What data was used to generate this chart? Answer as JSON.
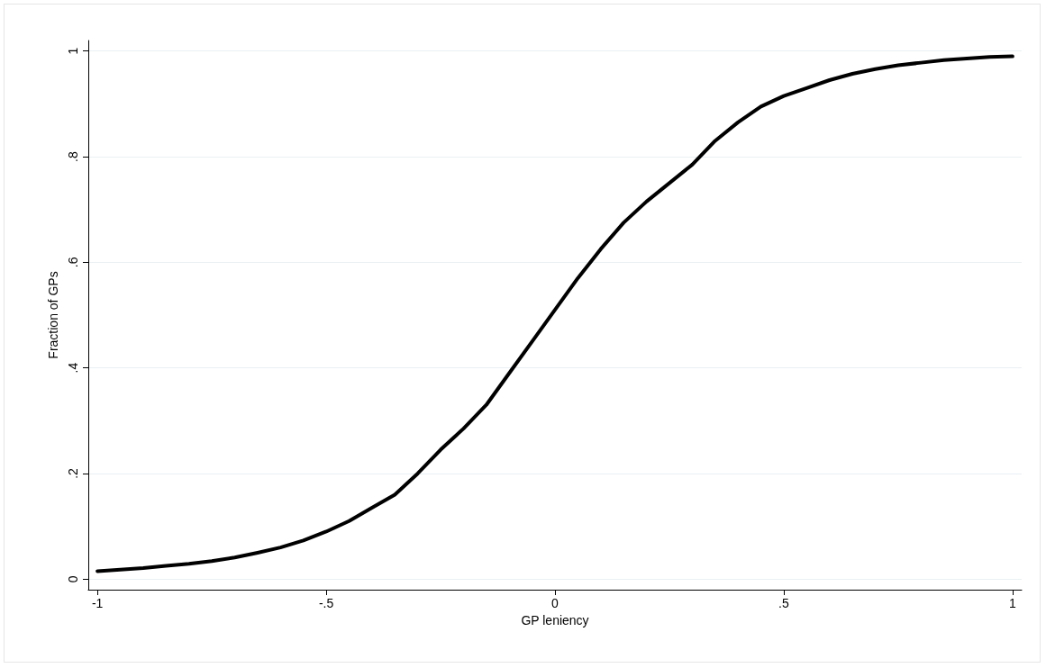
{
  "chart_data": {
    "type": "line",
    "xlabel": "GP leniency",
    "ylabel": "Fraction of GPs",
    "x": [
      -1,
      -0.95,
      -0.9,
      -0.85,
      -0.8,
      -0.75,
      -0.7,
      -0.65,
      -0.6,
      -0.55,
      -0.5,
      -0.45,
      -0.4,
      -0.35,
      -0.3,
      -0.25,
      -0.2,
      -0.15,
      -0.1,
      -0.05,
      0,
      0.05,
      0.1,
      0.15,
      0.2,
      0.25,
      0.3,
      0.35,
      0.4,
      0.45,
      0.5,
      0.55,
      0.6,
      0.65,
      0.7,
      0.75,
      0.8,
      0.85,
      0.9,
      0.95,
      1
    ],
    "series": [
      {
        "color": "#000000",
        "values": [
          0.015,
          0.018,
          0.021,
          0.025,
          0.029,
          0.034,
          0.041,
          0.05,
          0.06,
          0.073,
          0.09,
          0.11,
          0.135,
          0.16,
          0.2,
          0.245,
          0.285,
          0.33,
          0.39,
          0.45,
          0.51,
          0.57,
          0.625,
          0.675,
          0.715,
          0.75,
          0.785,
          0.83,
          0.865,
          0.895,
          0.915,
          0.93,
          0.945,
          0.957,
          0.966,
          0.973,
          0.978,
          0.983,
          0.986,
          0.989,
          0.99
        ]
      }
    ],
    "xlim": [
      -1.02,
      1.02
    ],
    "ylim": [
      -0.02,
      1.02
    ],
    "xticks": [
      -1,
      {
        "value": -0.5,
        "label": "-.5"
      },
      0,
      {
        "value": 0.5,
        "label": ".5"
      },
      1
    ],
    "yticks": [
      0,
      {
        "value": 0.2,
        "label": ".2"
      },
      {
        "value": 0.4,
        "label": ".4"
      },
      {
        "value": 0.6,
        "label": ".6"
      },
      {
        "value": 0.8,
        "label": ".8"
      },
      1
    ],
    "grid": "y",
    "marker": "none",
    "line_style": "solid"
  }
}
